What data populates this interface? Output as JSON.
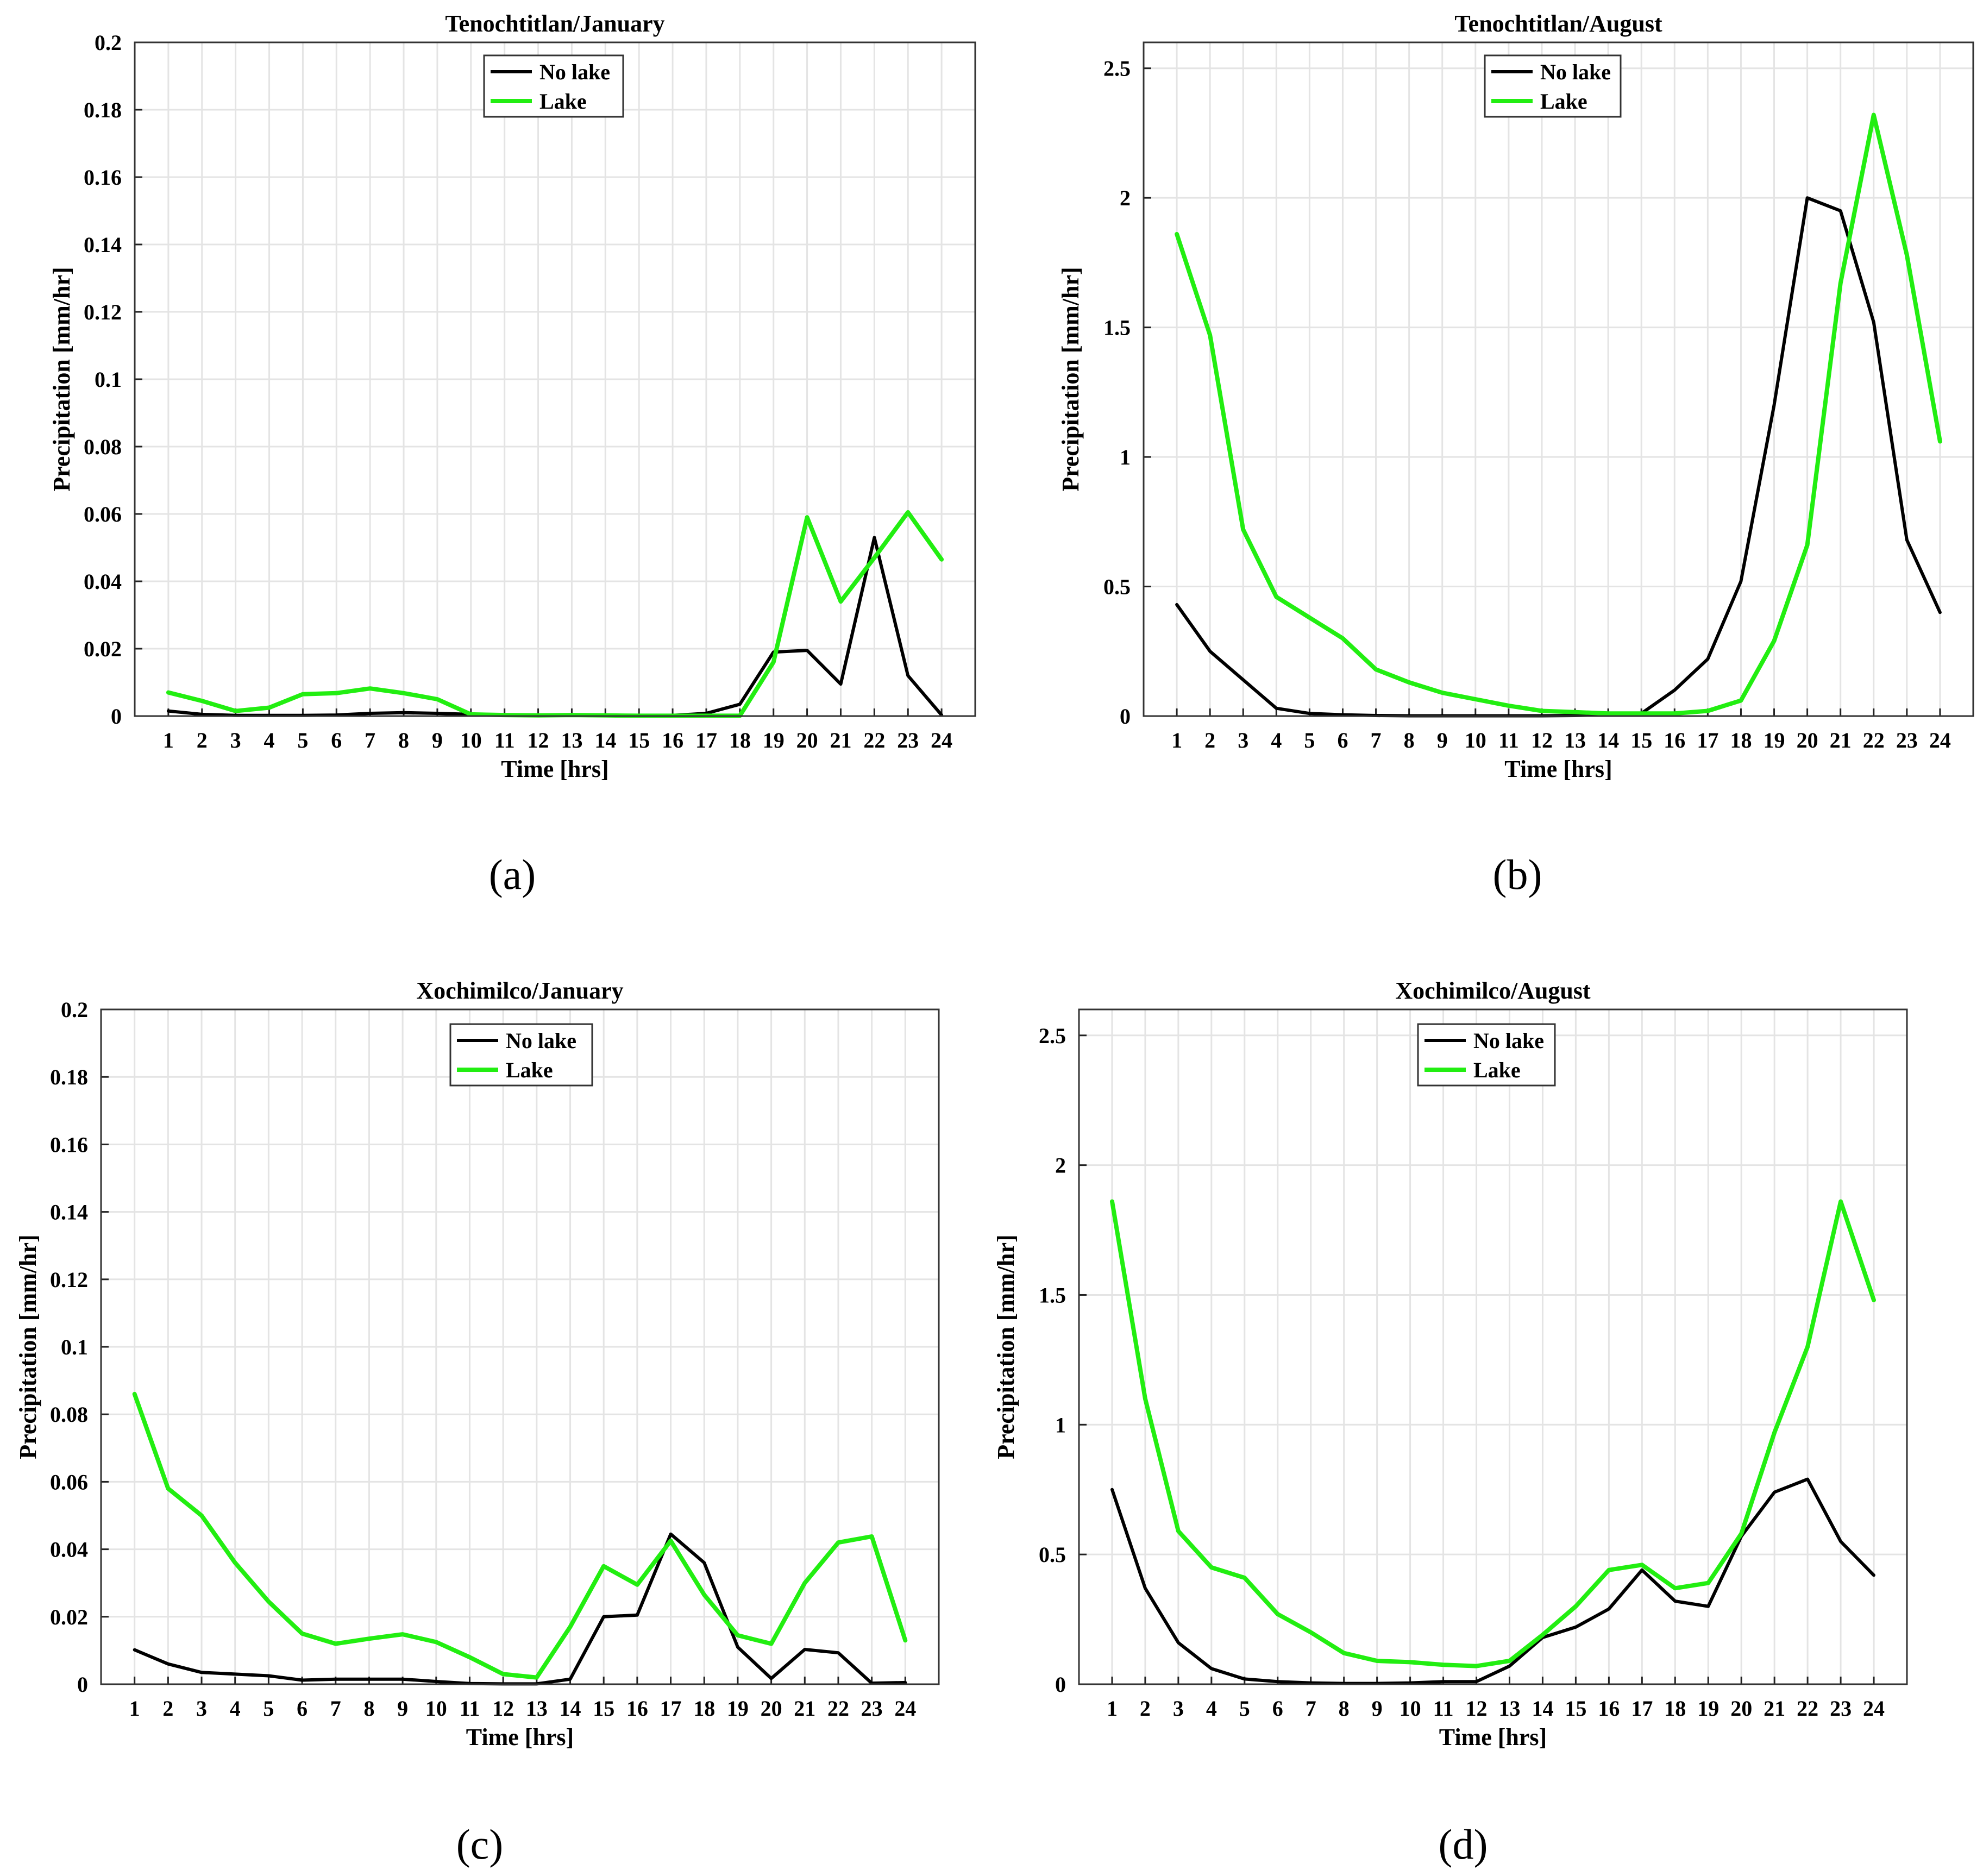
{
  "captions": [
    "(a)",
    "(b)",
    "(c)",
    "(d)"
  ],
  "chart_data": [
    {
      "type": "line",
      "title": "Tenochtitlan/January",
      "xlabel": "Time [hrs]",
      "ylabel": "Precipitation [mm/hr]",
      "x": [
        1,
        2,
        3,
        4,
        5,
        6,
        7,
        8,
        9,
        10,
        11,
        12,
        13,
        14,
        15,
        16,
        17,
        18,
        19,
        20,
        21,
        22,
        23,
        24
      ],
      "xlim": [
        0,
        25
      ],
      "ylim": [
        0,
        0.2
      ],
      "yticks": [
        0,
        0.02,
        0.04,
        0.06,
        0.08,
        0.1,
        0.12,
        0.14,
        0.16,
        0.18,
        0.2
      ],
      "yticklabels": [
        "0",
        "0.02",
        "0.04",
        "0.06",
        "0.08",
        "0.1",
        "0.12",
        "0.14",
        "0.16",
        "0.18",
        "0.2"
      ],
      "grid": true,
      "legend_position": "top-center",
      "series": [
        {
          "name": "No lake",
          "color": "#000000",
          "values": [
            0.0015,
            0.0005,
            0.0002,
            0.0002,
            0.0002,
            0.0003,
            0.0008,
            0.001,
            0.0008,
            0.0005,
            0.0003,
            0.0002,
            0.0002,
            0.0001,
            0.0001,
            0.0002,
            0.0008,
            0.0035,
            0.019,
            0.0195,
            0.0095,
            0.053,
            0.012,
            0.0003
          ]
        },
        {
          "name": "Lake",
          "color": "#22ee11",
          "values": [
            0.007,
            0.0045,
            0.0015,
            0.0025,
            0.0065,
            0.0068,
            0.0082,
            0.0068,
            0.005,
            0.0005,
            0.0003,
            0.0002,
            0.0003,
            0.0002,
            0.0001,
            0.0001,
            0.0001,
            0.0001,
            0.016,
            0.059,
            0.034,
            0.047,
            0.0605,
            0.0465
          ]
        }
      ]
    },
    {
      "type": "line",
      "title": "Tenochtitlan/August",
      "xlabel": "Time [hrs]",
      "ylabel": "Precipitation [mm/hr]",
      "x": [
        1,
        2,
        3,
        4,
        5,
        6,
        7,
        8,
        9,
        10,
        11,
        12,
        13,
        14,
        15,
        16,
        17,
        18,
        19,
        20,
        21,
        22,
        23,
        24
      ],
      "xlim": [
        0,
        25
      ],
      "ylim": [
        0,
        2.6
      ],
      "yticks": [
        0,
        0.5,
        1,
        1.5,
        2,
        2.5
      ],
      "yticklabels": [
        "0",
        "0.5",
        "1",
        "1.5",
        "2",
        "2.5"
      ],
      "grid": true,
      "legend_position": "top-center",
      "series": [
        {
          "name": "No lake",
          "color": "#000000",
          "values": [
            0.43,
            0.25,
            0.14,
            0.03,
            0.01,
            0.005,
            0.002,
            0.001,
            0.001,
            0.001,
            0.001,
            0.001,
            0.002,
            0.005,
            0.01,
            0.1,
            0.22,
            0.52,
            1.2,
            2.0,
            1.95,
            1.52,
            0.68,
            0.4
          ]
        },
        {
          "name": "Lake",
          "color": "#22ee11",
          "values": [
            1.86,
            1.47,
            0.72,
            0.46,
            0.38,
            0.3,
            0.18,
            0.13,
            0.09,
            0.065,
            0.04,
            0.02,
            0.015,
            0.01,
            0.01,
            0.01,
            0.02,
            0.06,
            0.29,
            0.66,
            1.67,
            2.32,
            1.78,
            1.06
          ]
        }
      ]
    },
    {
      "type": "line",
      "title": "Xochimilco/January",
      "xlabel": "Time [hrs]",
      "ylabel": "Precipitation [mm/hr]",
      "x": [
        1,
        2,
        3,
        4,
        5,
        6,
        7,
        8,
        9,
        10,
        11,
        12,
        13,
        14,
        15,
        16,
        17,
        18,
        19,
        20,
        21,
        22,
        23,
        24
      ],
      "xlim": [
        0,
        25
      ],
      "ylim": [
        0,
        0.2
      ],
      "yticks": [
        0,
        0.02,
        0.04,
        0.06,
        0.08,
        0.1,
        0.12,
        0.14,
        0.16,
        0.18,
        0.2
      ],
      "yticklabels": [
        "0",
        "0.02",
        "0.04",
        "0.06",
        "0.08",
        "0.1",
        "0.12",
        "0.14",
        "0.16",
        "0.18",
        "0.2"
      ],
      "grid": true,
      "legend_position": "top-center",
      "series": [
        {
          "name": "No lake",
          "color": "#000000",
          "values": [
            0.0102,
            0.006,
            0.0035,
            0.003,
            0.0025,
            0.0012,
            0.0015,
            0.0015,
            0.0015,
            0.0008,
            0.0002,
            0.0001,
            0.0001,
            0.0015,
            0.02,
            0.0205,
            0.0445,
            0.036,
            0.011,
            0.0017,
            0.0103,
            0.0093,
            0.0003,
            0.0005
          ]
        },
        {
          "name": "Lake",
          "color": "#22ee11",
          "values": [
            0.086,
            0.058,
            0.05,
            0.036,
            0.0245,
            0.015,
            0.012,
            0.0135,
            0.0148,
            0.0125,
            0.008,
            0.003,
            0.002,
            0.017,
            0.035,
            0.0295,
            0.0425,
            0.0265,
            0.0145,
            0.012,
            0.03,
            0.042,
            0.0438,
            0.013
          ]
        }
      ]
    },
    {
      "type": "line",
      "title": "Xochimilco/August",
      "xlabel": "Time [hrs]",
      "ylabel": "Precipitation [mm/hr]",
      "x": [
        1,
        2,
        3,
        4,
        5,
        6,
        7,
        8,
        9,
        10,
        11,
        12,
        13,
        14,
        15,
        16,
        17,
        18,
        19,
        20,
        21,
        22,
        23,
        24
      ],
      "xlim": [
        0,
        25
      ],
      "ylim": [
        0,
        2.6
      ],
      "yticks": [
        0,
        0.5,
        1,
        1.5,
        2,
        2.5
      ],
      "yticklabels": [
        "0",
        "0.5",
        "1",
        "1.5",
        "2",
        "2.5"
      ],
      "grid": true,
      "legend_position": "top-center",
      "series": [
        {
          "name": "No lake",
          "color": "#000000",
          "values": [
            0.75,
            0.37,
            0.16,
            0.06,
            0.02,
            0.01,
            0.005,
            0.003,
            0.003,
            0.005,
            0.01,
            0.01,
            0.07,
            0.18,
            0.22,
            0.29,
            0.44,
            0.32,
            0.3,
            0.57,
            0.74,
            0.79,
            0.55,
            0.42
          ]
        },
        {
          "name": "Lake",
          "color": "#22ee11",
          "values": [
            1.86,
            1.1,
            0.59,
            0.45,
            0.41,
            0.27,
            0.2,
            0.12,
            0.09,
            0.085,
            0.075,
            0.07,
            0.09,
            0.19,
            0.3,
            0.44,
            0.46,
            0.37,
            0.39,
            0.58,
            0.97,
            1.3,
            1.86,
            1.48
          ]
        }
      ]
    }
  ]
}
